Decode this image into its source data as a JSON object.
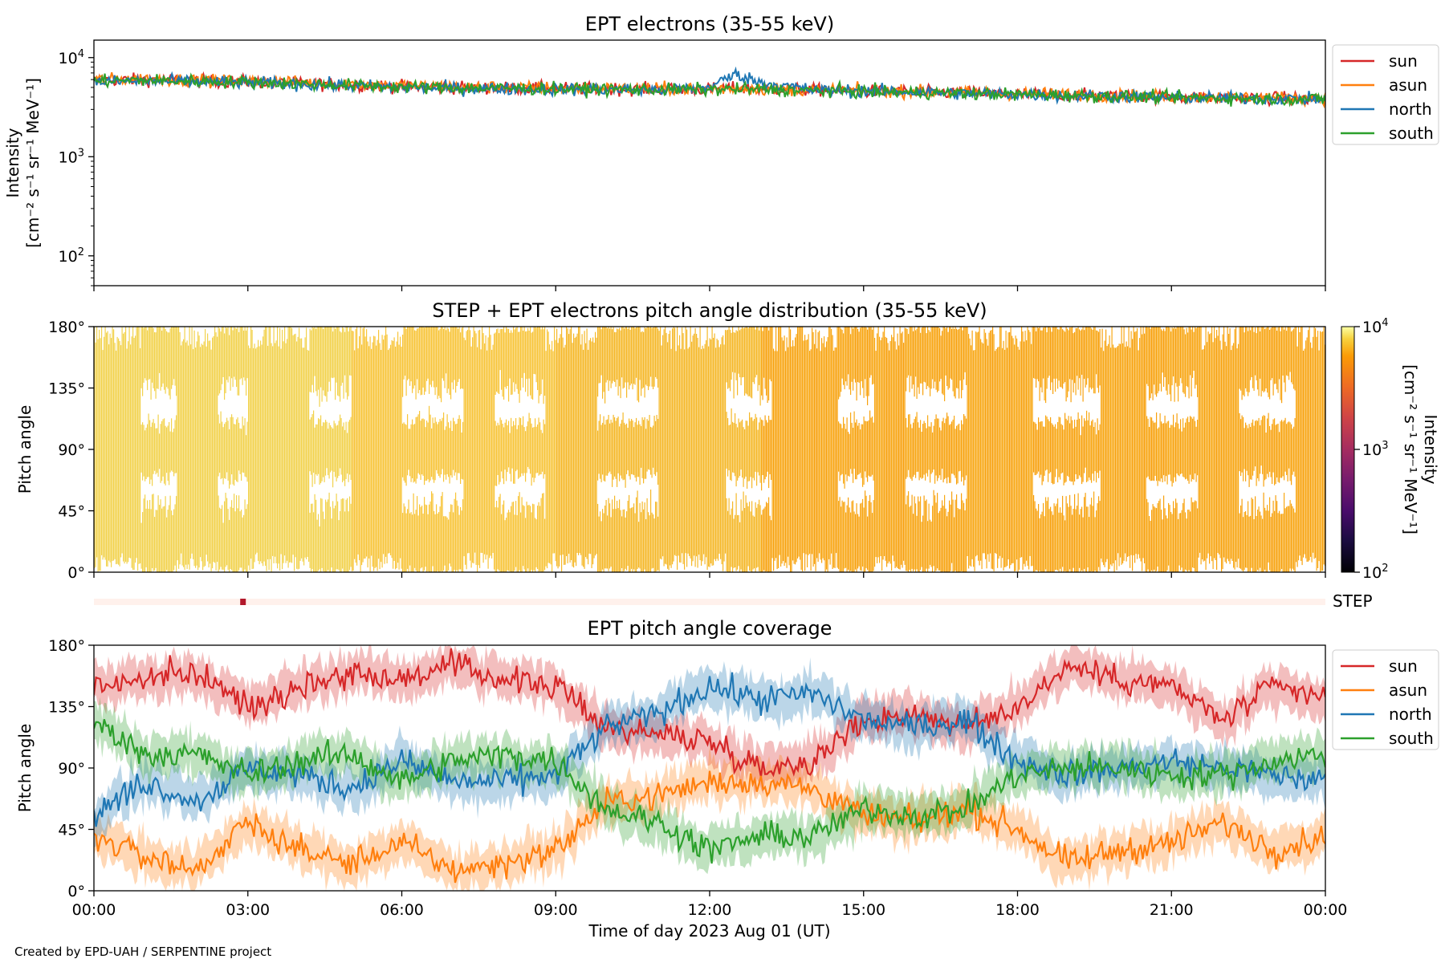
{
  "chart_data": [
    {
      "type": "line",
      "title": "EPT electrons (35-55 keV)",
      "ylabel_line1": "Intensity",
      "ylabel_line2": "[cm⁻² s⁻¹ sr⁻¹ MeV⁻¹]",
      "yscale": "log",
      "ylim": [
        50,
        15000
      ],
      "yticks": [
        {
          "value": 100,
          "base": "10",
          "exp": "2"
        },
        {
          "value": 1000,
          "base": "10",
          "exp": "3"
        },
        {
          "value": 10000,
          "base": "10",
          "exp": "4"
        }
      ],
      "x_hours": [
        0,
        1,
        2,
        3,
        4,
        5,
        6,
        7,
        8,
        9,
        10,
        11,
        12,
        12.5,
        13,
        14,
        15,
        16,
        17,
        18,
        19,
        20,
        21,
        22,
        23,
        24
      ],
      "legend_position": "outside-right-top",
      "series": [
        {
          "name": "sun",
          "color": "#d62728",
          "values": [
            5900,
            6000,
            5800,
            5700,
            5500,
            5300,
            5100,
            5000,
            4950,
            4900,
            4850,
            4800,
            4800,
            4900,
            4850,
            4700,
            4600,
            4500,
            4400,
            4300,
            4200,
            4100,
            4000,
            3950,
            3900,
            3850
          ]
        },
        {
          "name": "asun",
          "color": "#ff7f0e",
          "values": [
            6000,
            6100,
            5900,
            5800,
            5600,
            5400,
            5200,
            5100,
            5000,
            4950,
            4900,
            4850,
            4850,
            4900,
            4850,
            4750,
            4650,
            4550,
            4450,
            4350,
            4250,
            4150,
            4050,
            4000,
            3950,
            3900
          ]
        },
        {
          "name": "north",
          "color": "#1f77b4",
          "values": [
            5700,
            5800,
            5700,
            5600,
            5400,
            5200,
            5000,
            4900,
            4850,
            4800,
            4750,
            4700,
            5000,
            6800,
            5600,
            4700,
            4600,
            4500,
            4350,
            4250,
            4150,
            4050,
            3950,
            3900,
            3850,
            3800
          ]
        },
        {
          "name": "south",
          "color": "#2ca02c",
          "values": [
            5800,
            5900,
            5750,
            5650,
            5450,
            5250,
            5050,
            4950,
            4900,
            4850,
            4800,
            4750,
            4750,
            4800,
            4750,
            4650,
            4550,
            4450,
            4350,
            4250,
            4150,
            4050,
            3950,
            3900,
            3850,
            3800
          ]
        }
      ]
    },
    {
      "type": "heatmap",
      "title": "STEP + EPT electrons pitch angle distribution (35-55 keV)",
      "ylabel": "Pitch angle",
      "ylim": [
        0,
        180
      ],
      "yticks": [
        "0°",
        "45°",
        "90°",
        "135°",
        "180°"
      ],
      "colorbar": {
        "label_line1": "Intensity",
        "label_line2": "[cm⁻² s⁻¹ sr⁻¹ MeV⁻¹]",
        "scale": "log",
        "range": [
          100,
          10000
        ],
        "ticks": [
          {
            "value": 100,
            "base": "10",
            "exp": "2"
          },
          {
            "value": 1000,
            "base": "10",
            "exp": "3"
          },
          {
            "value": 10000,
            "base": "10",
            "exp": "4"
          }
        ],
        "colormap": "inferno"
      },
      "fill_colors": [
        "#f2d24e",
        "#f7c53a",
        "#f5b82a",
        "#f8a916",
        "#f7a10e"
      ]
    },
    {
      "type": "bar",
      "label": "STEP",
      "background_color": "#fff1ec",
      "marker_color": "#b2182b",
      "marker_hour": 2.85
    },
    {
      "type": "line",
      "title": "EPT pitch angle coverage",
      "ylabel": "Pitch angle",
      "ylim": [
        0,
        180
      ],
      "yticks": [
        "0°",
        "45°",
        "90°",
        "135°",
        "180°"
      ],
      "x_hours": [
        0,
        1,
        2,
        3,
        4,
        5,
        6,
        7,
        8,
        9,
        10,
        11,
        12,
        13,
        14,
        15,
        16,
        17,
        18,
        19,
        20,
        21,
        22,
        23,
        24
      ],
      "legend_position": "outside-right-top",
      "series": [
        {
          "name": "sun",
          "color": "#d62728",
          "values": [
            150,
            155,
            160,
            135,
            150,
            160,
            155,
            165,
            155,
            150,
            120,
            115,
            110,
            90,
            95,
            125,
            130,
            120,
            135,
            165,
            155,
            150,
            125,
            150,
            140
          ]
        },
        {
          "name": "asun",
          "color": "#ff7f0e",
          "values": [
            40,
            25,
            15,
            50,
            30,
            20,
            35,
            15,
            20,
            30,
            65,
            70,
            80,
            80,
            75,
            55,
            50,
            60,
            45,
            20,
            30,
            35,
            50,
            30,
            40
          ]
        },
        {
          "name": "north",
          "color": "#1f77b4",
          "values": [
            55,
            80,
            65,
            90,
            85,
            75,
            95,
            80,
            80,
            85,
            120,
            130,
            150,
            140,
            145,
            125,
            120,
            125,
            95,
            85,
            90,
            95,
            90,
            85,
            80
          ]
        },
        {
          "name": "south",
          "color": "#2ca02c",
          "values": [
            125,
            100,
            100,
            85,
            95,
            100,
            80,
            95,
            100,
            95,
            60,
            50,
            30,
            40,
            40,
            60,
            55,
            60,
            85,
            90,
            90,
            85,
            85,
            95,
            100
          ]
        }
      ]
    }
  ],
  "xaxis": {
    "label": "Time of day 2023 Aug 01 (UT)",
    "ticks": [
      "00:00",
      "03:00",
      "06:00",
      "09:00",
      "12:00",
      "15:00",
      "18:00",
      "21:00",
      "00:00"
    ]
  },
  "credit": "Created by EPD-UAH / SERPENTINE project"
}
